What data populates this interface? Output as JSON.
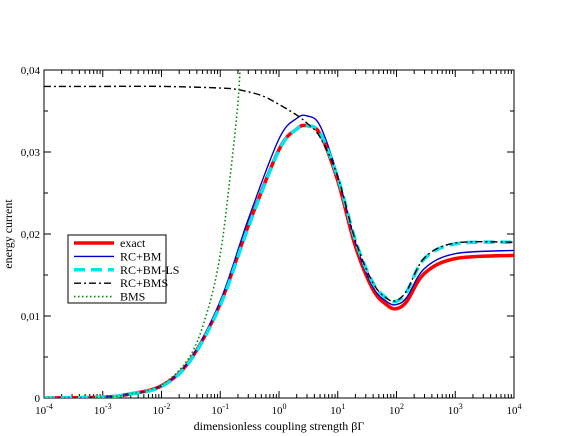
{
  "chart_data": {
    "type": "line",
    "title": "",
    "xlabel": "dimensionless coupling strength βΓ",
    "ylabel": "energy current",
    "xscale": "log",
    "xlim": [
      0.0001,
      10000
    ],
    "ylim": [
      0,
      0.04
    ],
    "x_ticks": [
      {
        "base": "10",
        "exp": "-4"
      },
      {
        "base": "10",
        "exp": "-3"
      },
      {
        "base": "10",
        "exp": "-2"
      },
      {
        "base": "10",
        "exp": "-1"
      },
      {
        "base": "10",
        "exp": "0"
      },
      {
        "base": "10",
        "exp": "1"
      },
      {
        "base": "10",
        "exp": "2"
      },
      {
        "base": "10",
        "exp": "3"
      },
      {
        "base": "10",
        "exp": "4"
      }
    ],
    "y_ticks": [
      "0",
      "0,01",
      "0,02",
      "0,03",
      "0,04"
    ],
    "y_tick_values": [
      0,
      0.01,
      0.02,
      0.03,
      0.04
    ],
    "grid": false,
    "legend_position": "left-center",
    "series": [
      {
        "name": "exact",
        "color": "#ff0000",
        "style": "solid-thick",
        "x": [
          0.0001,
          0.001,
          0.003,
          0.01,
          0.03,
          0.1,
          0.3,
          1,
          2,
          3,
          5,
          10,
          20,
          40,
          70,
          100,
          150,
          300,
          1000,
          10000
        ],
        "y": [
          0.0,
          0.0001,
          0.0005,
          0.0015,
          0.0045,
          0.0115,
          0.021,
          0.0303,
          0.0328,
          0.0332,
          0.0322,
          0.0265,
          0.0185,
          0.0132,
          0.0113,
          0.0109,
          0.0118,
          0.0152,
          0.017,
          0.0174
        ]
      },
      {
        "name": "RC+BM",
        "color": "#0000cc",
        "style": "solid",
        "x": [
          0.0001,
          0.001,
          0.003,
          0.01,
          0.03,
          0.1,
          0.3,
          1,
          2,
          3,
          5,
          10,
          20,
          40,
          70,
          100,
          150,
          300,
          1000,
          10000
        ],
        "y": [
          0.0,
          0.0001,
          0.0005,
          0.0015,
          0.0046,
          0.0118,
          0.0218,
          0.0316,
          0.0341,
          0.0344,
          0.0332,
          0.0271,
          0.0189,
          0.0135,
          0.0117,
          0.0114,
          0.0123,
          0.0158,
          0.0176,
          0.018
        ]
      },
      {
        "name": "RC+BM-LS",
        "color": "#00e5ee",
        "style": "dashed-thick",
        "x": [
          0.0001,
          0.001,
          0.003,
          0.01,
          0.03,
          0.1,
          0.3,
          1,
          2,
          3,
          5,
          10,
          20,
          40,
          70,
          100,
          150,
          300,
          1000,
          10000
        ],
        "y": [
          0.0,
          0.0001,
          0.0005,
          0.0014,
          0.0044,
          0.0113,
          0.0208,
          0.0302,
          0.0328,
          0.0332,
          0.0323,
          0.0269,
          0.0192,
          0.014,
          0.0121,
          0.0118,
          0.013,
          0.017,
          0.0188,
          0.019
        ]
      },
      {
        "name": "RC+BMS",
        "color": "#000000",
        "style": "dash-dot",
        "x": [
          0.0001,
          0.001,
          0.01,
          0.1,
          0.2,
          0.5,
          1,
          2,
          3,
          5,
          10,
          20,
          40,
          70,
          100,
          150,
          300,
          1000,
          10000
        ],
        "y": [
          0.038,
          0.038,
          0.038,
          0.0378,
          0.0376,
          0.0369,
          0.0358,
          0.0345,
          0.0335,
          0.0318,
          0.027,
          0.0192,
          0.014,
          0.0121,
          0.0119,
          0.0131,
          0.0171,
          0.0189,
          0.019
        ]
      },
      {
        "name": "BMS",
        "color": "#008800",
        "style": "dotted",
        "x": [
          0.0001,
          0.001,
          0.003,
          0.01,
          0.03,
          0.06,
          0.1,
          0.15,
          0.2,
          0.22
        ],
        "y": [
          0.0,
          0.0001,
          0.0005,
          0.0016,
          0.005,
          0.0105,
          0.0175,
          0.0275,
          0.036,
          0.041
        ]
      }
    ]
  }
}
